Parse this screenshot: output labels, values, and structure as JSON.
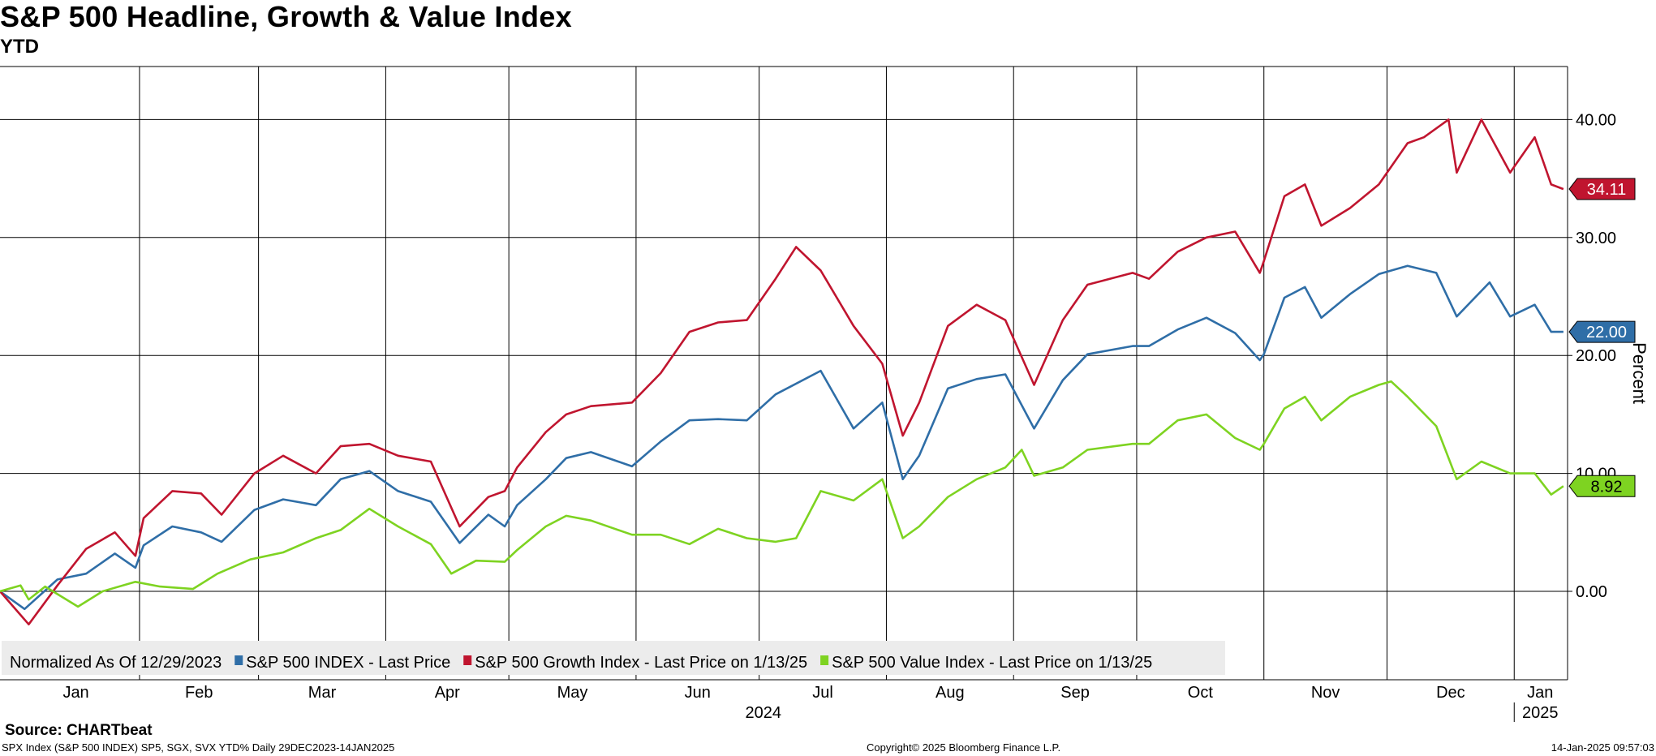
{
  "header": {
    "title": "S&P 500 Headline, Growth & Value Index",
    "subtitle": "YTD"
  },
  "footer": {
    "source": "Source: CHARTbeat",
    "series_info": "SPX Index (S&P 500 INDEX) SP5, SGX, SVX YTD%  Daily 29DEC2023-14JAN2025",
    "copyright": "Copyright© 2025 Bloomberg Finance L.P.",
    "timestamp": "14-Jan-2025 09:57:03"
  },
  "chart_data": {
    "type": "line",
    "ylabel": "Percent",
    "ylim": [
      -7.5,
      44.5
    ],
    "yticks": [
      0,
      10,
      20,
      30,
      40
    ],
    "ytick_labels": [
      "0.00",
      "10.00",
      "20.00",
      "30.00",
      "40.00"
    ],
    "x_start": "2023-12-29",
    "x_end": "2025-01-14",
    "months": [
      "Jan",
      "Feb",
      "Mar",
      "Apr",
      "May",
      "Jun",
      "Jul",
      "Aug",
      "Sep",
      "Oct",
      "Nov",
      "Dec",
      "Jan"
    ],
    "years": [
      "2024",
      "2025"
    ],
    "legend_prefix": "Normalized As Of 12/29/2023",
    "colors": {
      "spx": "#2f6ea7",
      "growth": "#c0152f",
      "value": "#7ed321"
    },
    "series": [
      {
        "name": "S&P 500 INDEX - Last Price",
        "key": "spx",
        "last_label": "22.00",
        "points": [
          [
            "2023-12-29",
            0.0
          ],
          [
            "2024-01-04",
            -1.5
          ],
          [
            "2024-01-12",
            1.0
          ],
          [
            "2024-01-19",
            1.5
          ],
          [
            "2024-01-26",
            3.2
          ],
          [
            "2024-01-31",
            2.0
          ],
          [
            "2024-02-02",
            3.9
          ],
          [
            "2024-02-09",
            5.5
          ],
          [
            "2024-02-16",
            5.0
          ],
          [
            "2024-02-21",
            4.2
          ],
          [
            "2024-02-29",
            6.9
          ],
          [
            "2024-03-07",
            7.8
          ],
          [
            "2024-03-15",
            7.3
          ],
          [
            "2024-03-21",
            9.5
          ],
          [
            "2024-03-28",
            10.2
          ],
          [
            "2024-04-04",
            8.5
          ],
          [
            "2024-04-12",
            7.6
          ],
          [
            "2024-04-19",
            4.1
          ],
          [
            "2024-04-26",
            6.5
          ],
          [
            "2024-04-30",
            5.5
          ],
          [
            "2024-05-03",
            7.3
          ],
          [
            "2024-05-10",
            9.5
          ],
          [
            "2024-05-15",
            11.3
          ],
          [
            "2024-05-21",
            11.8
          ],
          [
            "2024-05-31",
            10.6
          ],
          [
            "2024-06-07",
            12.7
          ],
          [
            "2024-06-14",
            14.5
          ],
          [
            "2024-06-21",
            14.6
          ],
          [
            "2024-06-28",
            14.5
          ],
          [
            "2024-07-05",
            16.7
          ],
          [
            "2024-07-16",
            18.7
          ],
          [
            "2024-07-24",
            13.8
          ],
          [
            "2024-07-31",
            16.0
          ],
          [
            "2024-08-05",
            9.5
          ],
          [
            "2024-08-09",
            11.5
          ],
          [
            "2024-08-16",
            17.2
          ],
          [
            "2024-08-23",
            18.0
          ],
          [
            "2024-08-30",
            18.4
          ],
          [
            "2024-09-06",
            13.8
          ],
          [
            "2024-09-13",
            17.9
          ],
          [
            "2024-09-19",
            20.1
          ],
          [
            "2024-09-30",
            20.8
          ],
          [
            "2024-10-04",
            20.8
          ],
          [
            "2024-10-11",
            22.2
          ],
          [
            "2024-10-18",
            23.2
          ],
          [
            "2024-10-25",
            21.9
          ],
          [
            "2024-10-31",
            19.6
          ],
          [
            "2024-11-01",
            20.1
          ],
          [
            "2024-11-06",
            24.9
          ],
          [
            "2024-11-11",
            25.8
          ],
          [
            "2024-11-15",
            23.2
          ],
          [
            "2024-11-22",
            25.2
          ],
          [
            "2024-11-29",
            26.9
          ],
          [
            "2024-12-06",
            27.6
          ],
          [
            "2024-12-13",
            27.0
          ],
          [
            "2024-12-18",
            23.3
          ],
          [
            "2024-12-26",
            26.2
          ],
          [
            "2024-12-31",
            23.3
          ],
          [
            "2025-01-06",
            24.3
          ],
          [
            "2025-01-10",
            22.0
          ],
          [
            "2025-01-13",
            22.0
          ]
        ]
      },
      {
        "name": "S&P 500 Growth Index - Last Price on 1/13/25",
        "key": "growth",
        "last_label": "34.11",
        "points": [
          [
            "2023-12-29",
            0.0
          ],
          [
            "2024-01-05",
            -2.8
          ],
          [
            "2024-01-12",
            0.5
          ],
          [
            "2024-01-19",
            3.6
          ],
          [
            "2024-01-26",
            5.0
          ],
          [
            "2024-01-31",
            3.0
          ],
          [
            "2024-02-02",
            6.2
          ],
          [
            "2024-02-09",
            8.5
          ],
          [
            "2024-02-16",
            8.3
          ],
          [
            "2024-02-21",
            6.5
          ],
          [
            "2024-02-29",
            10.0
          ],
          [
            "2024-03-07",
            11.5
          ],
          [
            "2024-03-15",
            10.0
          ],
          [
            "2024-03-21",
            12.3
          ],
          [
            "2024-03-28",
            12.5
          ],
          [
            "2024-04-04",
            11.5
          ],
          [
            "2024-04-12",
            11.0
          ],
          [
            "2024-04-19",
            5.5
          ],
          [
            "2024-04-26",
            8.0
          ],
          [
            "2024-04-30",
            8.5
          ],
          [
            "2024-05-03",
            10.5
          ],
          [
            "2024-05-10",
            13.5
          ],
          [
            "2024-05-15",
            15.0
          ],
          [
            "2024-05-21",
            15.7
          ],
          [
            "2024-05-31",
            16.0
          ],
          [
            "2024-06-07",
            18.5
          ],
          [
            "2024-06-14",
            22.0
          ],
          [
            "2024-06-21",
            22.8
          ],
          [
            "2024-06-28",
            23.0
          ],
          [
            "2024-07-05",
            26.5
          ],
          [
            "2024-07-10",
            29.2
          ],
          [
            "2024-07-16",
            27.2
          ],
          [
            "2024-07-24",
            22.5
          ],
          [
            "2024-07-31",
            19.3
          ],
          [
            "2024-08-05",
            13.2
          ],
          [
            "2024-08-09",
            16.0
          ],
          [
            "2024-08-16",
            22.5
          ],
          [
            "2024-08-23",
            24.3
          ],
          [
            "2024-08-30",
            23.0
          ],
          [
            "2024-09-06",
            17.5
          ],
          [
            "2024-09-13",
            23.0
          ],
          [
            "2024-09-19",
            26.0
          ],
          [
            "2024-09-30",
            27.0
          ],
          [
            "2024-10-04",
            26.5
          ],
          [
            "2024-10-11",
            28.8
          ],
          [
            "2024-10-18",
            30.0
          ],
          [
            "2024-10-25",
            30.5
          ],
          [
            "2024-10-31",
            27.0
          ],
          [
            "2024-11-01",
            28.0
          ],
          [
            "2024-11-06",
            33.5
          ],
          [
            "2024-11-11",
            34.5
          ],
          [
            "2024-11-15",
            31.0
          ],
          [
            "2024-11-22",
            32.5
          ],
          [
            "2024-11-29",
            34.5
          ],
          [
            "2024-12-06",
            38.0
          ],
          [
            "2024-12-10",
            38.5
          ],
          [
            "2024-12-16",
            40.0
          ],
          [
            "2024-12-18",
            35.5
          ],
          [
            "2024-12-24",
            40.0
          ],
          [
            "2024-12-31",
            35.5
          ],
          [
            "2025-01-06",
            38.5
          ],
          [
            "2025-01-08",
            36.5
          ],
          [
            "2025-01-10",
            34.5
          ],
          [
            "2025-01-13",
            34.11
          ]
        ]
      },
      {
        "name": "S&P 500 Value Index - Last Price on 1/13/25",
        "key": "value",
        "last_label": "8.92",
        "points": [
          [
            "2023-12-29",
            0.0
          ],
          [
            "2024-01-03",
            0.5
          ],
          [
            "2024-01-05",
            -0.7
          ],
          [
            "2024-01-09",
            0.4
          ],
          [
            "2024-01-17",
            -1.3
          ],
          [
            "2024-01-23",
            0.0
          ],
          [
            "2024-01-31",
            0.8
          ],
          [
            "2024-02-06",
            0.4
          ],
          [
            "2024-02-14",
            0.2
          ],
          [
            "2024-02-20",
            1.5
          ],
          [
            "2024-02-28",
            2.7
          ],
          [
            "2024-03-07",
            3.3
          ],
          [
            "2024-03-15",
            4.5
          ],
          [
            "2024-03-21",
            5.2
          ],
          [
            "2024-03-28",
            7.0
          ],
          [
            "2024-04-04",
            5.5
          ],
          [
            "2024-04-12",
            4.0
          ],
          [
            "2024-04-17",
            1.5
          ],
          [
            "2024-04-23",
            2.6
          ],
          [
            "2024-04-30",
            2.5
          ],
          [
            "2024-05-03",
            3.5
          ],
          [
            "2024-05-10",
            5.5
          ],
          [
            "2024-05-15",
            6.4
          ],
          [
            "2024-05-21",
            6.0
          ],
          [
            "2024-05-31",
            4.8
          ],
          [
            "2024-06-07",
            4.8
          ],
          [
            "2024-06-14",
            4.0
          ],
          [
            "2024-06-21",
            5.3
          ],
          [
            "2024-06-28",
            4.5
          ],
          [
            "2024-07-05",
            4.2
          ],
          [
            "2024-07-10",
            4.5
          ],
          [
            "2024-07-16",
            8.5
          ],
          [
            "2024-07-24",
            7.7
          ],
          [
            "2024-07-31",
            9.5
          ],
          [
            "2024-08-05",
            4.5
          ],
          [
            "2024-08-09",
            5.5
          ],
          [
            "2024-08-16",
            8.0
          ],
          [
            "2024-08-23",
            9.5
          ],
          [
            "2024-08-30",
            10.5
          ],
          [
            "2024-09-03",
            12.0
          ],
          [
            "2024-09-06",
            9.8
          ],
          [
            "2024-09-13",
            10.5
          ],
          [
            "2024-09-19",
            12.0
          ],
          [
            "2024-09-30",
            12.5
          ],
          [
            "2024-10-04",
            12.5
          ],
          [
            "2024-10-11",
            14.5
          ],
          [
            "2024-10-18",
            15.0
          ],
          [
            "2024-10-25",
            13.0
          ],
          [
            "2024-10-31",
            12.0
          ],
          [
            "2024-11-01",
            12.5
          ],
          [
            "2024-11-06",
            15.5
          ],
          [
            "2024-11-11",
            16.5
          ],
          [
            "2024-11-15",
            14.5
          ],
          [
            "2024-11-22",
            16.5
          ],
          [
            "2024-11-29",
            17.5
          ],
          [
            "2024-12-02",
            17.8
          ],
          [
            "2024-12-06",
            16.5
          ],
          [
            "2024-12-13",
            14.0
          ],
          [
            "2024-12-18",
            9.5
          ],
          [
            "2024-12-24",
            11.0
          ],
          [
            "2024-12-31",
            10.0
          ],
          [
            "2025-01-06",
            10.0
          ],
          [
            "2025-01-10",
            8.2
          ],
          [
            "2025-01-13",
            8.92
          ]
        ]
      }
    ]
  }
}
